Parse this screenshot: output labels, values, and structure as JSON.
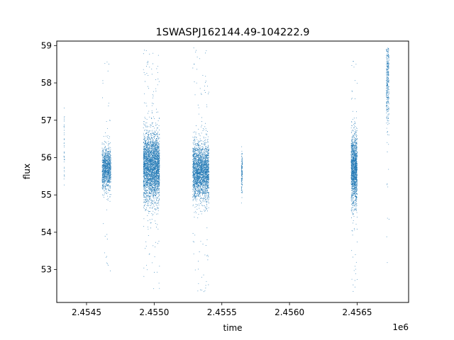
{
  "chart_data": {
    "type": "scatter",
    "title": "1SWASPJ162144.49-104222.9",
    "xlabel": "time",
    "ylabel": "flux",
    "x_offset_label": "1e6",
    "xlim": [
      2454280,
      2456880
    ],
    "ylim": [
      52.12,
      59.12
    ],
    "x_ticks": [
      2454500,
      2455000,
      2455500,
      2456000,
      2456500
    ],
    "x_tick_labels": [
      "2.4545",
      "2.4550",
      "2.4555",
      "2.4560",
      "2.4565"
    ],
    "y_ticks": [
      53,
      54,
      55,
      56,
      57,
      58,
      59
    ],
    "y_tick_labels": [
      "53",
      "54",
      "55",
      "56",
      "57",
      "58",
      "59"
    ],
    "grid": false,
    "marker_color": "#1f77b4",
    "series": [
      {
        "clusters": [
          {
            "x_range": [
              2454333,
              2454337
            ],
            "center": 56.1,
            "spread": 0.75,
            "y_range": [
              55.2,
              58.2
            ],
            "n": 40
          },
          {
            "x_range": [
              2454615,
              2454680
            ],
            "center": 55.7,
            "spread": 0.28,
            "y_range": [
              52.6,
              58.9
            ],
            "n": 1100
          },
          {
            "x_range": [
              2454920,
              2455040
            ],
            "center": 55.75,
            "spread": 0.45,
            "y_range": [
              52.4,
              59.0
            ],
            "n": 3200
          },
          {
            "x_range": [
              2455285,
              2455405
            ],
            "center": 55.65,
            "spread": 0.38,
            "y_range": [
              52.4,
              59.0
            ],
            "n": 2500
          },
          {
            "x_range": [
              2455644,
              2455652
            ],
            "center": 55.6,
            "spread": 0.28,
            "y_range": [
              54.5,
              56.6
            ],
            "n": 130
          },
          {
            "x_range": [
              2456455,
              2456500
            ],
            "center": 55.7,
            "spread": 0.45,
            "y_range": [
              52.4,
              58.8
            ],
            "n": 1500
          },
          {
            "x_range": [
              2456715,
              2456735
            ],
            "center": 58.1,
            "spread": 0.6,
            "y_range": [
              52.4,
              58.95
            ],
            "n": 320
          }
        ]
      }
    ]
  }
}
